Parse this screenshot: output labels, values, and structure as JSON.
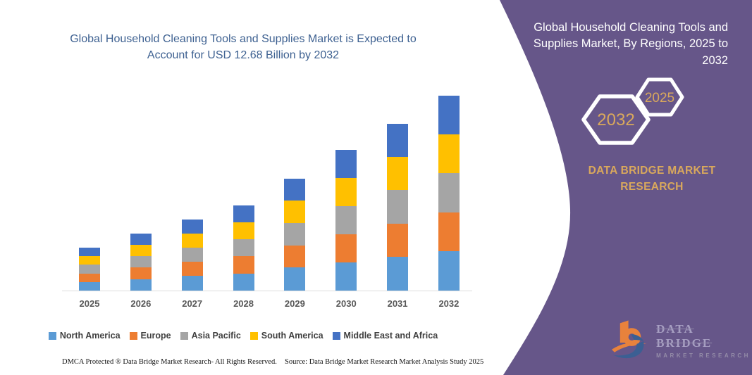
{
  "chart": {
    "title": "Global Household Cleaning Tools and Supplies Market is Expected to Account for USD 12.68 Billion by 2032",
    "title_color": "#3e6191"
  },
  "chart_data": {
    "type": "bar",
    "stacked": true,
    "title": "Global Household Cleaning Tools and Supplies Market is Expected to Account for USD 12.68 Billion by 2032",
    "unit": "USD Billion",
    "categories": [
      "2025",
      "2026",
      "2027",
      "2028",
      "2029",
      "2030",
      "2031",
      "2032"
    ],
    "series": [
      {
        "name": "North America",
        "color": "#5B9BD5",
        "values": [
          0.56,
          0.75,
          0.95,
          1.12,
          1.5,
          1.85,
          2.2,
          2.55
        ]
      },
      {
        "name": "Europe",
        "color": "#ED7D31",
        "values": [
          0.56,
          0.74,
          0.93,
          1.11,
          1.45,
          1.83,
          2.17,
          2.54
        ]
      },
      {
        "name": "Asia Pacific",
        "color": "#A5A5A5",
        "values": [
          0.56,
          0.74,
          0.92,
          1.11,
          1.45,
          1.83,
          2.17,
          2.54
        ]
      },
      {
        "name": "South America",
        "color": "#FFC000",
        "values": [
          0.56,
          0.73,
          0.91,
          1.1,
          1.45,
          1.82,
          2.16,
          2.53
        ]
      },
      {
        "name": "Middle East and Africa",
        "color": "#4472C4",
        "values": [
          0.56,
          0.74,
          0.91,
          1.1,
          1.43,
          1.82,
          2.15,
          2.52
        ]
      }
    ],
    "totals": [
      2.8,
      3.7,
      4.62,
      5.54,
      7.28,
      9.15,
      10.85,
      12.68
    ],
    "ylim": [
      0,
      13.5
    ],
    "grid": false,
    "y_axis_visible": false,
    "x_axis_line_color": "#dcdcdc",
    "legend_position": "bottom",
    "xlabel": "",
    "ylabel": ""
  },
  "footer": {
    "dmca": "DMCA Protected ® Data Bridge Market Research-  All Rights Reserved.",
    "source": "Source: Data Bridge Market Research  Market Analysis Study 2025"
  },
  "panel": {
    "background": "#665689",
    "accent_gold": "#d9a85c",
    "title": "Global Household Cleaning Tools and Supplies Market, By Regions, 2025 to 2032",
    "hex_large_label": "2032",
    "hex_small_label": "2025",
    "brand_heading": "DATA BRIDGE MARKET RESEARCH",
    "logo": {
      "name_text": "DATA BRIDGE",
      "sub_text": "MARKET RESEARCH"
    }
  }
}
